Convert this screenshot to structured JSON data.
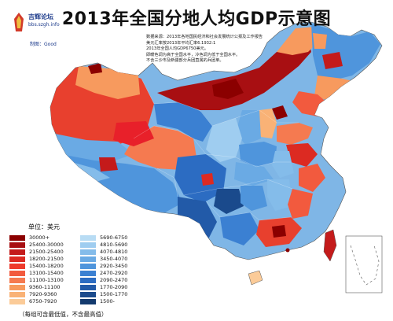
{
  "title": "2013年全国分地人均GDP示意图",
  "logo": {
    "name": "吉辉论坛",
    "site": "bbs.szgh.info",
    "maker": "制图：Good"
  },
  "notes": [
    "数据来源：2013年各地国民经济和社会发展统计公报及工作报告",
    "美元汇率按2013年平均汇率6.1932:1",
    "2013年全国人均GDP6750美元。",
    "即暖色调为高于全国水平，冷色调为低于全国水平。",
    "不含三沙市及新疆部分兵团直属的兵团单。"
  ],
  "legend": {
    "unit": "单位：美元",
    "warm": [
      {
        "label": "30000+",
        "color": "#8b0000"
      },
      {
        "label": "25400-30000",
        "color": "#a80f12"
      },
      {
        "label": "21500-25400",
        "color": "#c41b1b"
      },
      {
        "label": "18200-21500",
        "color": "#dc2a22"
      },
      {
        "label": "15400-18200",
        "color": "#ee3b2c"
      },
      {
        "label": "13100-15400",
        "color": "#f25a3e"
      },
      {
        "label": "11100-13100",
        "color": "#f57a50"
      },
      {
        "label": "9360-11100",
        "color": "#f79a5e"
      },
      {
        "label": "7920-9360",
        "color": "#f9b276"
      },
      {
        "label": "6750-7920",
        "color": "#fbcb98"
      }
    ],
    "cool": [
      {
        "label": "5690-6750",
        "color": "#b8dcf4"
      },
      {
        "label": "4810-5690",
        "color": "#9fcdf0"
      },
      {
        "label": "4070-4810",
        "color": "#84bcea"
      },
      {
        "label": "3450-4070",
        "color": "#6aaae4"
      },
      {
        "label": "2920-3450",
        "color": "#4f95dc"
      },
      {
        "label": "2470-2920",
        "color": "#3b80d2"
      },
      {
        "label": "2090-2470",
        "color": "#2c6cc2"
      },
      {
        "label": "1770-2090",
        "color": "#225aa8"
      },
      {
        "label": "1500-1770",
        "color": "#1a4a8c"
      },
      {
        "label": "1500-",
        "color": "#133a6e"
      }
    ]
  },
  "footnote": "（每组可含最低值，不含最高值）"
}
